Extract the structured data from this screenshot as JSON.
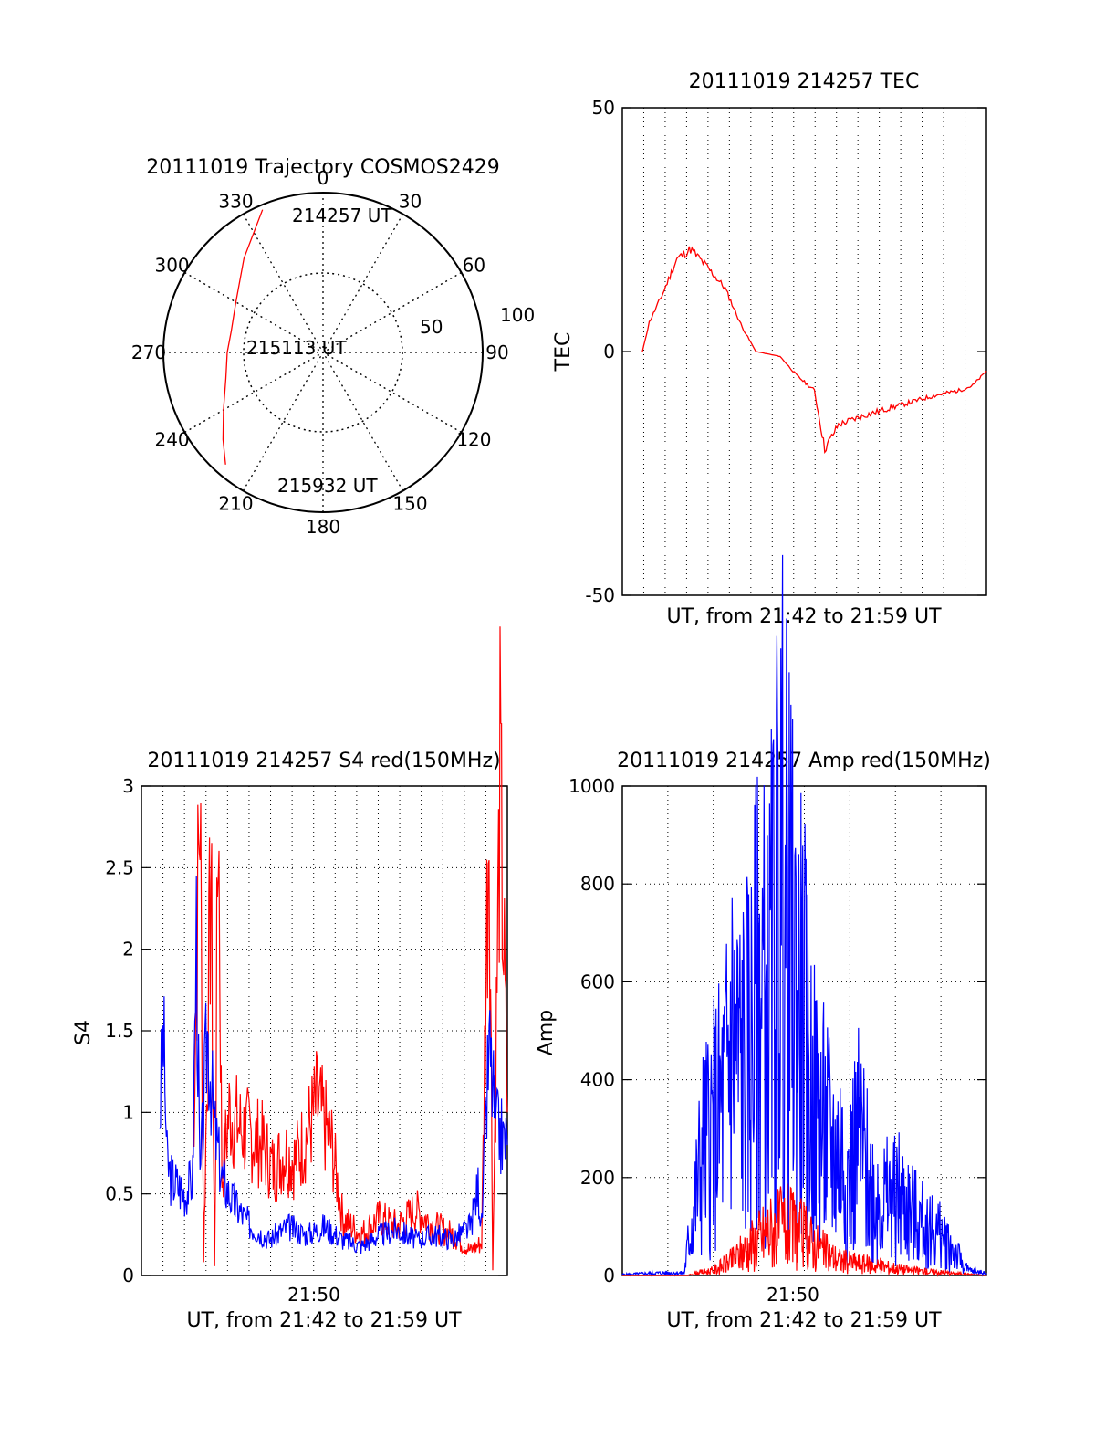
{
  "chart_data": [
    {
      "id": "trajectory",
      "type": "polar",
      "title": "20111019 Trajectory COSMOS2429",
      "azimuth_labels": [
        "0",
        "30",
        "60",
        "90",
        "120",
        "150",
        "180",
        "210",
        "240",
        "270",
        "300",
        "330"
      ],
      "radius_labels": [
        "50",
        "100"
      ],
      "rlim": [
        0,
        100
      ],
      "grid": true,
      "series": [
        {
          "color": "#ff0000",
          "points": [
            {
              "az": 337,
              "r": 97
            },
            {
              "az": 320,
              "r": 77
            },
            {
              "az": 300,
              "r": 63
            },
            {
              "az": 283,
              "r": 59
            },
            {
              "az": 270,
              "r": 60
            },
            {
              "az": 255,
              "r": 63
            },
            {
              "az": 240,
              "r": 72
            },
            {
              "az": 229,
              "r": 83
            },
            {
              "az": 221,
              "r": 93
            }
          ]
        }
      ],
      "annotations": [
        "214257 UT",
        "215113 UT",
        "215932 UT"
      ]
    },
    {
      "id": "tec",
      "type": "line",
      "title": "20111019 214257 TEC",
      "xlabel": "UT, from 21:42 to 21:59 UT",
      "ylabel": "TEC",
      "ylim": [
        -50,
        50
      ],
      "yticks": [
        "50",
        "0",
        "-50"
      ],
      "xlim": [
        0,
        1
      ],
      "grid": "vertical-dotted",
      "series": [
        {
          "color": "#ff0000",
          "points": [
            [
              0.0,
              0
            ],
            [
              0.02,
              6
            ],
            [
              0.06,
              12
            ],
            [
              0.1,
              19
            ],
            [
              0.14,
              21
            ],
            [
              0.18,
              18
            ],
            [
              0.24,
              13
            ],
            [
              0.29,
              5
            ],
            [
              0.33,
              0
            ],
            [
              0.4,
              -1
            ],
            [
              0.45,
              -5
            ],
            [
              0.5,
              -8
            ],
            [
              0.53,
              -20
            ],
            [
              0.57,
              -15
            ],
            [
              0.65,
              -13
            ],
            [
              0.75,
              -11
            ],
            [
              0.85,
              -9
            ],
            [
              0.92,
              -8
            ],
            [
              0.96,
              -7
            ],
            [
              1.0,
              -4
            ]
          ]
        }
      ]
    },
    {
      "id": "s4",
      "type": "line",
      "title": "20111019 214257 S4 red(150MHz)",
      "xlabel": "UT, from 21:42 to 21:59 UT",
      "ylabel": "S4",
      "ylim": [
        0,
        3
      ],
      "yticks": [
        "0",
        "0.5",
        "1",
        "1.5",
        "2",
        "2.5",
        "3"
      ],
      "xticks": [
        "21:50"
      ],
      "grid": true,
      "series": [
        {
          "color": "#ff0000",
          "points": [
            [
              0.14,
              0.6
            ],
            [
              0.16,
              3.0
            ],
            [
              0.17,
              0.1
            ],
            [
              0.19,
              2.5
            ],
            [
              0.2,
              0.05
            ],
            [
              0.21,
              3.0
            ],
            [
              0.22,
              0.6
            ],
            [
              0.24,
              1.0
            ],
            [
              0.27,
              0.9
            ],
            [
              0.3,
              0.85
            ],
            [
              0.33,
              0.8
            ],
            [
              0.36,
              0.65
            ],
            [
              0.39,
              0.75
            ],
            [
              0.42,
              0.7
            ],
            [
              0.45,
              0.85
            ],
            [
              0.48,
              1.05
            ],
            [
              0.52,
              0.8
            ],
            [
              0.55,
              0.35
            ],
            [
              0.6,
              0.25
            ],
            [
              0.65,
              0.35
            ],
            [
              0.7,
              0.3
            ],
            [
              0.75,
              0.4
            ],
            [
              0.8,
              0.3
            ],
            [
              0.85,
              0.25
            ],
            [
              0.9,
              0.15
            ],
            [
              0.93,
              0.2
            ],
            [
              0.95,
              3.0
            ],
            [
              0.96,
              0.05
            ],
            [
              0.98,
              3.0
            ],
            [
              1.0,
              1.0
            ]
          ]
        },
        {
          "color": "#0000ff",
          "points": [
            [
              0.05,
              1.0
            ],
            [
              0.06,
              1.5
            ],
            [
              0.07,
              0.7
            ],
            [
              0.08,
              0.6
            ],
            [
              0.1,
              0.55
            ],
            [
              0.12,
              0.5
            ],
            [
              0.14,
              0.6
            ],
            [
              0.15,
              2.1
            ],
            [
              0.16,
              0.55
            ],
            [
              0.18,
              1.5
            ],
            [
              0.2,
              0.9
            ],
            [
              0.22,
              0.6
            ],
            [
              0.25,
              0.45
            ],
            [
              0.3,
              0.3
            ],
            [
              0.35,
              0.22
            ],
            [
              0.4,
              0.3
            ],
            [
              0.45,
              0.25
            ],
            [
              0.5,
              0.3
            ],
            [
              0.55,
              0.22
            ],
            [
              0.6,
              0.18
            ],
            [
              0.65,
              0.25
            ],
            [
              0.7,
              0.28
            ],
            [
              0.75,
              0.22
            ],
            [
              0.8,
              0.25
            ],
            [
              0.85,
              0.22
            ],
            [
              0.9,
              0.3
            ],
            [
              0.92,
              0.55
            ],
            [
              0.93,
              0.3
            ],
            [
              0.95,
              1.4
            ],
            [
              0.97,
              0.9
            ],
            [
              1.0,
              0.8
            ]
          ]
        }
      ]
    },
    {
      "id": "amp",
      "type": "line",
      "title": "20111019 214257 Amp red(150MHz)",
      "xlabel": "UT, from 21:42 to 21:59 UT",
      "ylabel": "Amp",
      "ylim": [
        0,
        1000
      ],
      "yticks": [
        "0",
        "200",
        "400",
        "600",
        "800",
        "1000"
      ],
      "xticks": [
        "21:50"
      ],
      "grid": true,
      "series": [
        {
          "color": "#0000ff",
          "points": [
            [
              0.0,
              2
            ],
            [
              0.1,
              5
            ],
            [
              0.17,
              5
            ],
            [
              0.18,
              60
            ],
            [
              0.2,
              150
            ],
            [
              0.22,
              250
            ],
            [
              0.25,
              300
            ],
            [
              0.28,
              350
            ],
            [
              0.3,
              500
            ],
            [
              0.32,
              430
            ],
            [
              0.35,
              450
            ],
            [
              0.38,
              600
            ],
            [
              0.4,
              500
            ],
            [
              0.42,
              700
            ],
            [
              0.44,
              800
            ],
            [
              0.46,
              650
            ],
            [
              0.48,
              560
            ],
            [
              0.5,
              500
            ],
            [
              0.52,
              350
            ],
            [
              0.55,
              300
            ],
            [
              0.58,
              250
            ],
            [
              0.6,
              250
            ],
            [
              0.62,
              200
            ],
            [
              0.65,
              280
            ],
            [
              0.68,
              180
            ],
            [
              0.7,
              160
            ],
            [
              0.73,
              150
            ],
            [
              0.76,
              160
            ],
            [
              0.8,
              120
            ],
            [
              0.83,
              100
            ],
            [
              0.86,
              90
            ],
            [
              0.9,
              60
            ],
            [
              0.93,
              30
            ],
            [
              0.95,
              10
            ],
            [
              1.0,
              5
            ]
          ]
        },
        {
          "color": "#ff0000",
          "points": [
            [
              0.0,
              0
            ],
            [
              0.18,
              0
            ],
            [
              0.2,
              5
            ],
            [
              0.25,
              10
            ],
            [
              0.3,
              30
            ],
            [
              0.35,
              60
            ],
            [
              0.4,
              90
            ],
            [
              0.45,
              100
            ],
            [
              0.5,
              80
            ],
            [
              0.55,
              50
            ],
            [
              0.6,
              30
            ],
            [
              0.65,
              25
            ],
            [
              0.7,
              20
            ],
            [
              0.75,
              15
            ],
            [
              0.8,
              10
            ],
            [
              0.9,
              5
            ],
            [
              1.0,
              0
            ]
          ]
        }
      ]
    }
  ]
}
